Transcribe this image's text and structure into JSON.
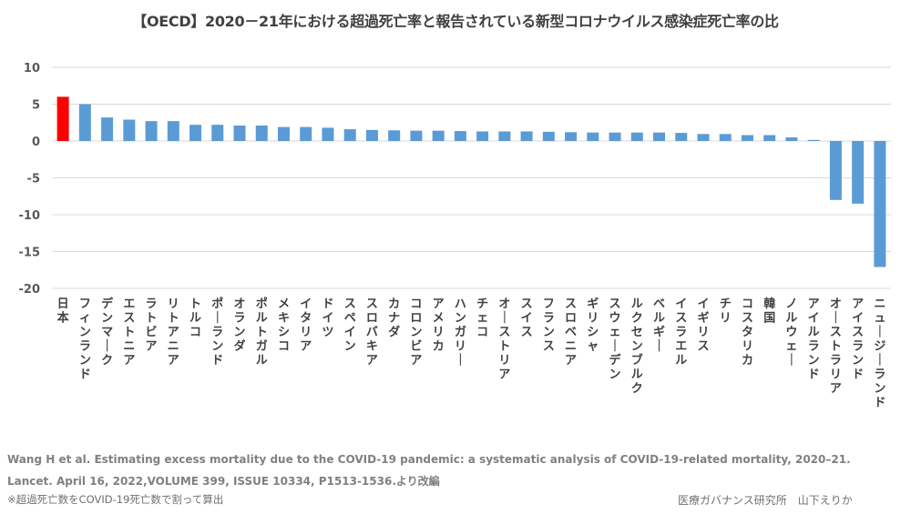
{
  "chart_data": {
    "type": "bar",
    "title": "【OECD】2020－21年における超過死亡率と報告されている新型コロナウイルス感染症死亡率の比",
    "xlabel": "",
    "ylabel": "",
    "ylim": [
      -20,
      10
    ],
    "yticks": [
      10,
      5,
      0,
      -5,
      -10,
      -15,
      -20
    ],
    "grid": true,
    "legend": "none",
    "categories": [
      "日本",
      "フィンランド",
      "デンマーク",
      "エストニア",
      "ラトビア",
      "リトアニア",
      "トルコ",
      "ポーランド",
      "オランダ",
      "ポルトガル",
      "メキシコ",
      "イタリア",
      "ドイツ",
      "スペイン",
      "スロバキア",
      "カナダ",
      "コロンビア",
      "アメリカ",
      "ハンガリー",
      "チェコ",
      "オーストリア",
      "スイス",
      "フランス",
      "スロベニア",
      "ギリシャ",
      "スウェーデン",
      "ルクセンブルク",
      "ベルギー",
      "イスラエル",
      "イギリス",
      "チリ",
      "コスタリカ",
      "韓国",
      "ノルウェー",
      "アイルランド",
      "オーストラリア",
      "アイスランド",
      "ニュージーランド"
    ],
    "values": [
      6.0,
      5.0,
      3.2,
      2.9,
      2.7,
      2.7,
      2.2,
      2.2,
      2.1,
      2.1,
      1.9,
      1.9,
      1.8,
      1.6,
      1.5,
      1.45,
      1.4,
      1.4,
      1.35,
      1.3,
      1.3,
      1.3,
      1.25,
      1.2,
      1.15,
      1.15,
      1.15,
      1.15,
      1.1,
      0.95,
      0.95,
      0.8,
      0.8,
      0.5,
      0.15,
      -8.0,
      -8.5,
      -17.1
    ],
    "highlight_index": 0,
    "colors": {
      "default": "#5b9bd5",
      "highlight": "#ff0000",
      "grid": "#d9d9d9"
    }
  },
  "footer": {
    "citation_line1": "Wang H et al. Estimating excess mortality due to the COVID-19 pandemic: a systematic analysis of COVID-19-related mortality, 2020–21.",
    "citation_line2": "Lancet. April 16, 2022,VOLUME 399, ISSUE 10334, P1513-1536.より改編",
    "note": "※超過死亡数をCOVID-19死亡数で割って算出",
    "author": "医療ガバナンス研究所　山下えりか"
  }
}
